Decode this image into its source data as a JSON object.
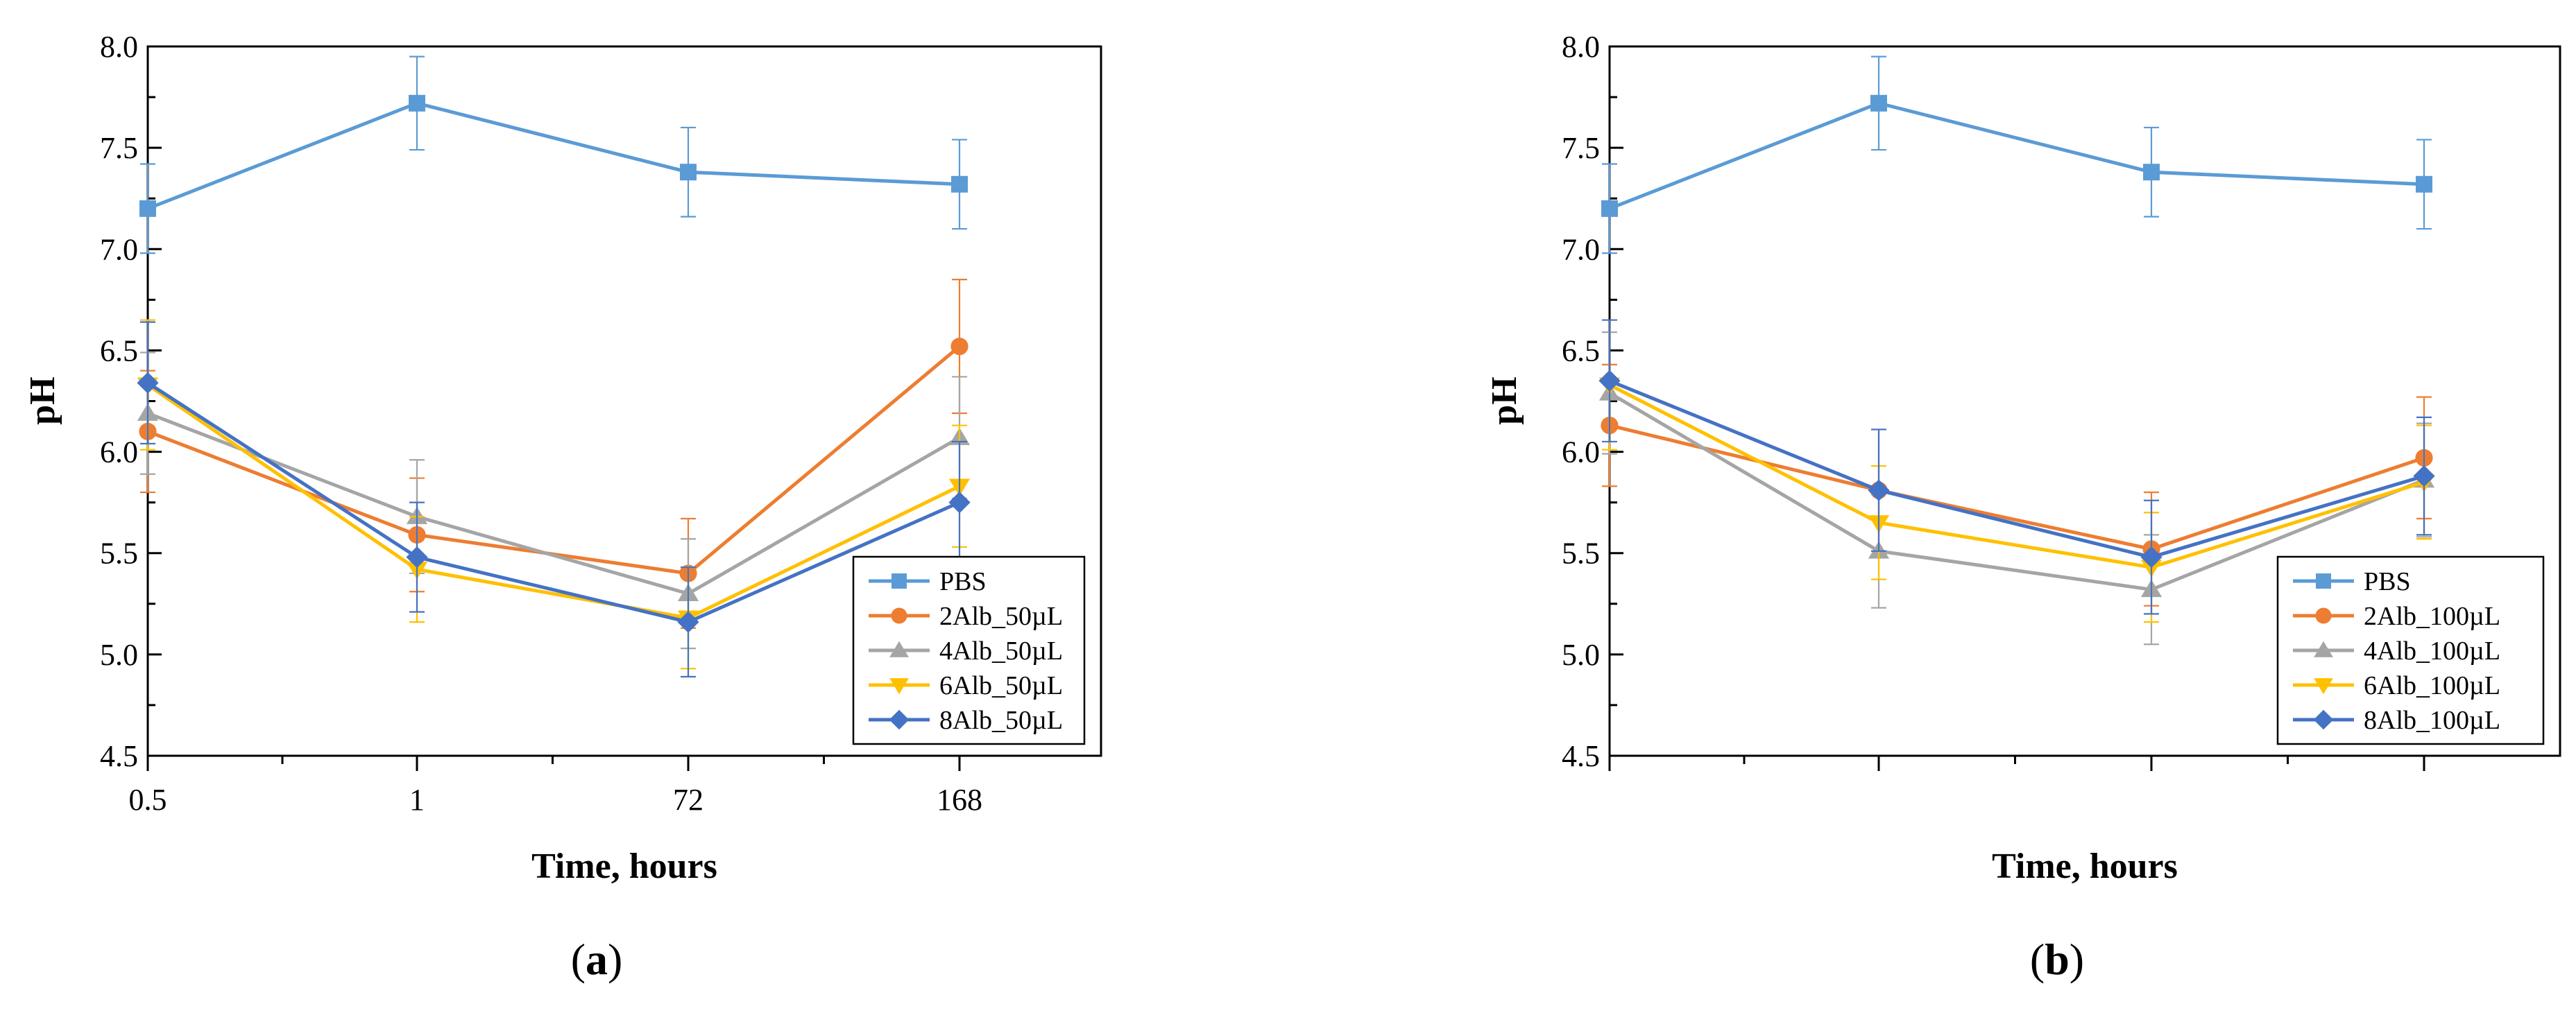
{
  "chart_data": [
    {
      "type": "line",
      "panel_label": "a",
      "xlabel": "Time, hours",
      "ylabel": "pH",
      "categories": [
        "0.5",
        "1",
        "72",
        "168"
      ],
      "ylim": [
        4.5,
        8.0
      ],
      "yticks": [
        "4.5",
        "5.0",
        "5.5",
        "6.0",
        "6.5",
        "7.0",
        "7.5",
        "8.0"
      ],
      "legend_position": "bottom-right",
      "series": [
        {
          "name": "PBS",
          "color": "#5B9BD5",
          "marker": "square",
          "values": [
            7.2,
            7.72,
            7.38,
            7.32
          ],
          "errors": [
            0.22,
            0.23,
            0.22,
            0.22
          ]
        },
        {
          "name": "2Alb_50µL",
          "color": "#ED7D31",
          "marker": "circle",
          "values": [
            6.1,
            5.59,
            5.4,
            6.52
          ],
          "errors": [
            0.3,
            0.28,
            0.27,
            0.33
          ]
        },
        {
          "name": "4Alb_50µL",
          "color": "#A5A5A5",
          "marker": "triangle-up",
          "values": [
            6.19,
            5.68,
            5.3,
            6.07
          ],
          "errors": [
            0.3,
            0.28,
            0.27,
            0.3
          ]
        },
        {
          "name": "6Alb_50µL",
          "color": "#FFC000",
          "marker": "triangle-down",
          "values": [
            6.33,
            5.42,
            5.18,
            5.83
          ],
          "errors": [
            0.32,
            0.26,
            0.25,
            0.3
          ]
        },
        {
          "name": "8Alb_50µL",
          "color": "#4472C4",
          "marker": "diamond",
          "values": [
            6.34,
            5.48,
            5.16,
            5.75
          ],
          "errors": [
            0.3,
            0.27,
            0.27,
            0.3
          ]
        }
      ]
    },
    {
      "type": "line",
      "panel_label": "b",
      "xlabel": "Time, hours",
      "ylabel": "pH",
      "categories": [
        "",
        "",
        "",
        ""
      ],
      "ylim": [
        4.5,
        8.0
      ],
      "yticks": [
        "4.5",
        "5.0",
        "5.5",
        "6.0",
        "6.5",
        "7.0",
        "7.5",
        "8.0"
      ],
      "legend_position": "bottom-right",
      "series": [
        {
          "name": "PBS",
          "color": "#5B9BD5",
          "marker": "square",
          "values": [
            7.2,
            7.72,
            7.38,
            7.32
          ],
          "errors": [
            0.22,
            0.23,
            0.22,
            0.22
          ]
        },
        {
          "name": "2Alb_100µL",
          "color": "#ED7D31",
          "marker": "circle",
          "values": [
            6.13,
            5.81,
            5.52,
            5.97
          ],
          "errors": [
            0.3,
            0.3,
            0.28,
            0.3
          ]
        },
        {
          "name": "4Alb_100µL",
          "color": "#A5A5A5",
          "marker": "triangle-up",
          "values": [
            6.29,
            5.51,
            5.32,
            5.86
          ],
          "errors": [
            0.3,
            0.28,
            0.27,
            0.28
          ]
        },
        {
          "name": "6Alb_100µL",
          "color": "#FFC000",
          "marker": "triangle-down",
          "values": [
            6.33,
            5.65,
            5.43,
            5.85
          ],
          "errors": [
            0.32,
            0.28,
            0.27,
            0.28
          ]
        },
        {
          "name": "8Alb_100µL",
          "color": "#4472C4",
          "marker": "diamond",
          "values": [
            6.35,
            5.81,
            5.48,
            5.88
          ],
          "errors": [
            0.3,
            0.3,
            0.28,
            0.29
          ]
        }
      ]
    }
  ]
}
